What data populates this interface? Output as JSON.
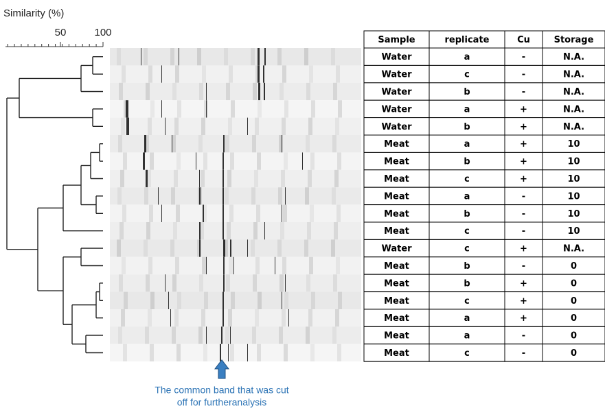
{
  "axis": {
    "label": "Similarity (%)",
    "ticks": [
      50,
      100
    ]
  },
  "table": {
    "header": [
      "Sample",
      "replicate",
      "Cu",
      "Storage"
    ],
    "rows": [
      [
        "Water",
        "a",
        "-",
        "N.A."
      ],
      [
        "Water",
        "c",
        "-",
        "N.A."
      ],
      [
        "Water",
        "b",
        "-",
        "N.A."
      ],
      [
        "Water",
        "a",
        "+",
        "N.A."
      ],
      [
        "Water",
        "b",
        "+",
        "N.A."
      ],
      [
        "Meat",
        "a",
        "+",
        "10"
      ],
      [
        "Meat",
        "b",
        "+",
        "10"
      ],
      [
        "Meat",
        "c",
        "+",
        "10"
      ],
      [
        "Meat",
        "a",
        "-",
        "10"
      ],
      [
        "Meat",
        "b",
        "-",
        "10"
      ],
      [
        "Meat",
        "c",
        "-",
        "10"
      ],
      [
        "Water",
        "c",
        "+",
        "N.A."
      ],
      [
        "Meat",
        "b",
        "-",
        "0"
      ],
      [
        "Meat",
        "b",
        "+",
        "0"
      ],
      [
        "Meat",
        "c",
        "+",
        "0"
      ],
      [
        "Meat",
        "a",
        "+",
        "0"
      ],
      [
        "Meat",
        "a",
        "-",
        "0"
      ],
      [
        "Meat",
        "c",
        "-",
        "0"
      ]
    ]
  },
  "caption": [
    "The common band that was cut",
    "off for furtheranalysis"
  ]
}
